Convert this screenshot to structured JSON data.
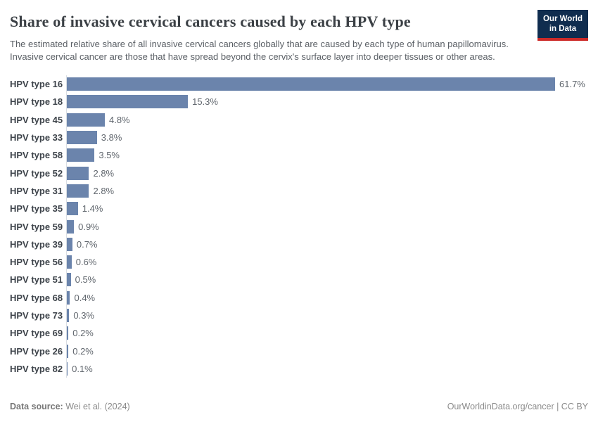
{
  "header": {
    "title": "Share of invasive cervical cancers caused by each HPV type",
    "subtitle": "The estimated relative share of all invasive cervical cancers globally that are caused by each type of human papillomavirus. Invasive cervical cancer are those that have spread beyond the cervix's surface layer into deeper tissues or other areas.",
    "logo": {
      "line1": "Our World",
      "line2": "in Data"
    }
  },
  "chart_data": {
    "type": "bar",
    "orientation": "horizontal",
    "title": "Share of invasive cervical cancers caused by each HPV type",
    "categories": [
      "HPV type 16",
      "HPV type 18",
      "HPV type 45",
      "HPV type 33",
      "HPV type 58",
      "HPV type 52",
      "HPV type 31",
      "HPV type 35",
      "HPV type 59",
      "HPV type 39",
      "HPV type 56",
      "HPV type 51",
      "HPV type 68",
      "HPV type 73",
      "HPV type 69",
      "HPV type 26",
      "HPV type 82"
    ],
    "values": [
      61.7,
      15.3,
      4.8,
      3.8,
      3.5,
      2.8,
      2.8,
      1.4,
      0.9,
      0.7,
      0.6,
      0.5,
      0.4,
      0.3,
      0.2,
      0.2,
      0.1
    ],
    "value_labels": [
      "61.7%",
      "15.3%",
      "4.8%",
      "3.8%",
      "3.5%",
      "2.8%",
      "2.8%",
      "1.4%",
      "0.9%",
      "0.7%",
      "0.6%",
      "0.5%",
      "0.4%",
      "0.3%",
      "0.2%",
      "0.2%",
      "0.1%"
    ],
    "unit": "%",
    "xlim": [
      0,
      61.7
    ],
    "grid": false,
    "legend": "none"
  },
  "footer": {
    "data_source_label": "Data source:",
    "data_source_value": "Wei et al. (2024)",
    "attribution": "OurWorldinData.org/cancer | CC BY"
  },
  "colors": {
    "bar": "#6b84ac",
    "axis_line": "#dadee3",
    "logo_bg": "#102d4f",
    "logo_accent": "#cc2a28"
  }
}
